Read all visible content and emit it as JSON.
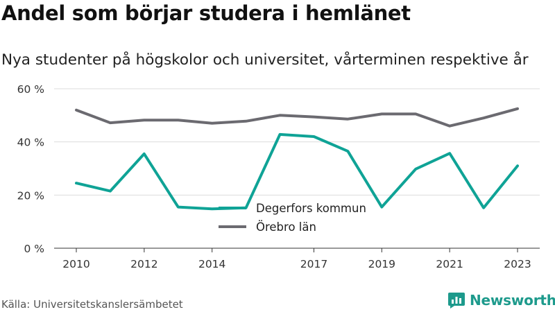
{
  "title": "Andel som börjar studera i hemlänet",
  "subtitle": "Nya studenter på högskolor och universitet, vårterminen respektive år",
  "source": "Källa: Universitetskanslersämbetet",
  "brand": {
    "name": "Newsworthy",
    "icon": "newsworthy-logo-icon",
    "color": "#1d9a8c"
  },
  "chart_data": {
    "type": "line",
    "x": [
      2010,
      2011,
      2012,
      2013,
      2014,
      2015,
      2016,
      2017,
      2018,
      2019,
      2020,
      2021,
      2022,
      2023
    ],
    "x_ticks": [
      "2010",
      "2012",
      "2014",
      "2017",
      "2019",
      "2021",
      "2023"
    ],
    "y_ticks": [
      "0 %",
      "20 %",
      "40 %",
      "60 %"
    ],
    "ylim": [
      0,
      60
    ],
    "grid": true,
    "legend_position": "inside, lower middle",
    "series": [
      {
        "name": "Degerfors kommun",
        "color": "#0fa396",
        "values": [
          24.5,
          21.5,
          35.5,
          15.5,
          14.8,
          15.2,
          42.8,
          42,
          36.5,
          15.5,
          29.8,
          35.7,
          15.2,
          31
        ]
      },
      {
        "name": "Örebro län",
        "color": "#6b6a70",
        "values": [
          52,
          47.2,
          48.2,
          48.2,
          47,
          47.8,
          50,
          49.4,
          48.6,
          50.5,
          50.5,
          46,
          49,
          52.5
        ]
      }
    ]
  }
}
